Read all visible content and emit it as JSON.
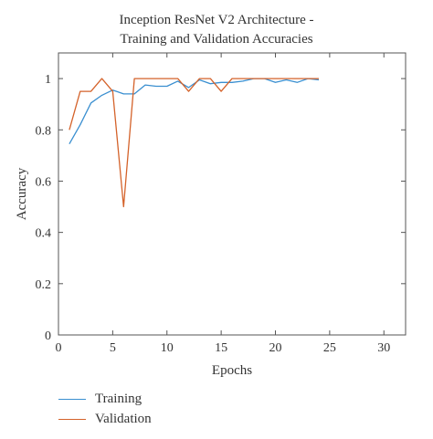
{
  "chart_data": {
    "type": "line",
    "title_lines": [
      "Inception ResNet V2 Architecture -",
      "Training and Validation Accuracies"
    ],
    "xlabel": "Epochs",
    "ylabel": "Accuracy",
    "xlim": [
      0,
      32
    ],
    "ylim": [
      0,
      1.1
    ],
    "xticks": [
      0,
      5,
      10,
      15,
      20,
      25,
      30
    ],
    "yticks": [
      0,
      0.2,
      0.4,
      0.6,
      0.8,
      1
    ],
    "ytick_labels": [
      "0",
      "0.2",
      "0.4",
      "0.6",
      "0.8",
      "1"
    ],
    "grid": false,
    "legend_position": "below-left",
    "series": [
      {
        "name": "Training",
        "color": "#3a8fd0",
        "x": [
          1,
          2,
          3,
          4,
          5,
          6,
          7,
          8,
          9,
          10,
          11,
          12,
          13,
          14,
          15,
          16,
          17,
          18,
          19,
          20,
          21,
          22,
          23,
          24
        ],
        "y": [
          0.745,
          0.82,
          0.905,
          0.935,
          0.955,
          0.94,
          0.94,
          0.975,
          0.97,
          0.97,
          0.99,
          0.965,
          0.995,
          0.98,
          0.985,
          0.985,
          0.99,
          1.0,
          1.0,
          0.985,
          0.995,
          0.985,
          1.0,
          0.995
        ]
      },
      {
        "name": "Validation",
        "color": "#d4622a",
        "x": [
          1,
          2,
          3,
          4,
          5,
          6,
          7,
          8,
          9,
          10,
          11,
          12,
          13,
          14,
          15,
          16,
          17,
          18,
          19,
          20,
          21,
          22,
          23,
          24
        ],
        "y": [
          0.8,
          0.95,
          0.95,
          1.0,
          0.95,
          0.5,
          1.0,
          1.0,
          1.0,
          1.0,
          1.0,
          0.95,
          1.0,
          1.0,
          0.95,
          1.0,
          1.0,
          1.0,
          1.0,
          1.0,
          1.0,
          1.0,
          1.0,
          1.0
        ]
      }
    ]
  }
}
